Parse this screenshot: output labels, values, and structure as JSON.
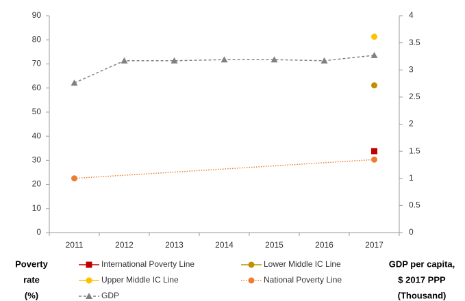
{
  "chart_data": {
    "type": "line",
    "ylabel": [
      "Poverty",
      "rate",
      "(%)"
    ],
    "y2label": [
      "GDP per capita,",
      "$ 2017 PPP",
      "(Thousand)"
    ],
    "xticks": [
      2011,
      2012,
      2013,
      2014,
      2015,
      2016,
      2017
    ],
    "xlim": [
      2010.5,
      2017.5
    ],
    "ylim": [
      0,
      90
    ],
    "yticks": [
      0,
      10,
      20,
      30,
      40,
      50,
      60,
      70,
      80,
      90
    ],
    "y2lim": [
      0,
      4
    ],
    "y2ticks": [
      0,
      0.5,
      1,
      1.5,
      2,
      2.5,
      3,
      3.5,
      4
    ],
    "grid": false,
    "series": [
      {
        "name": "International Poverty Line",
        "color": "#c00000",
        "marker": "square",
        "line": "solid",
        "x": [
          2017
        ],
        "values": [
          33.8
        ]
      },
      {
        "name": "Lower Middle IC Line",
        "color": "#bf9000",
        "marker": "circle",
        "line": "solid",
        "x": [
          2017
        ],
        "values": [
          61.1
        ]
      },
      {
        "name": "Upper Middle IC Line",
        "color": "#ffc000",
        "marker": "circle",
        "line": "solid",
        "x": [
          2017
        ],
        "values": [
          81.3
        ]
      },
      {
        "name": "National Poverty Line",
        "color": "#ed7d31",
        "marker": "circle",
        "line": "dotted",
        "x": [
          2011,
          2017
        ],
        "values": [
          22.5,
          30.3
        ]
      },
      {
        "name": "GDP",
        "color": "#808080",
        "marker": "triangle",
        "line": "dashed",
        "axis": "y2",
        "x": [
          2011,
          2012,
          2013,
          2014,
          2015,
          2016,
          2017
        ],
        "values": [
          2.76,
          3.17,
          3.17,
          3.19,
          3.19,
          3.17,
          3.27
        ]
      }
    ]
  }
}
